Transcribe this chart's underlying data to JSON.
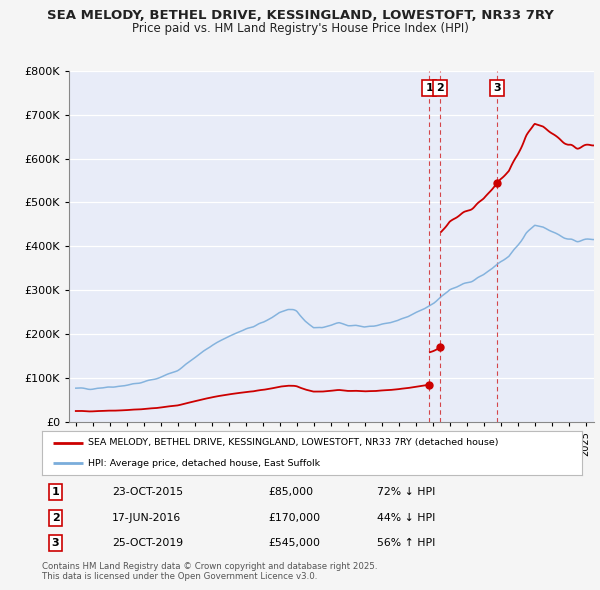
{
  "title_line1": "SEA MELODY, BETHEL DRIVE, KESSINGLAND, LOWESTOFT, NR33 7RY",
  "title_line2": "Price paid vs. HM Land Registry's House Price Index (HPI)",
  "background_color": "#f5f5f5",
  "plot_bg_color": "#e8ecf8",
  "ylim": [
    0,
    800000
  ],
  "yticks": [
    0,
    100000,
    200000,
    300000,
    400000,
    500000,
    600000,
    700000,
    800000
  ],
  "xlim_start": 1994.6,
  "xlim_end": 2025.5,
  "transactions": [
    {
      "num": 1,
      "date": "23-OCT-2015",
      "price": 85000,
      "year": 2015.81,
      "pct": "72%",
      "dir": "↓"
    },
    {
      "num": 2,
      "date": "17-JUN-2016",
      "price": 170000,
      "year": 2016.46,
      "pct": "44%",
      "dir": "↓"
    },
    {
      "num": 3,
      "date": "25-OCT-2019",
      "price": 545000,
      "year": 2019.81,
      "pct": "56%",
      "dir": "↑"
    }
  ],
  "legend_label_red": "SEA MELODY, BETHEL DRIVE, KESSINGLAND, LOWESTOFT, NR33 7RY (detached house)",
  "legend_label_blue": "HPI: Average price, detached house, East Suffolk",
  "footnote_line1": "Contains HM Land Registry data © Crown copyright and database right 2025.",
  "footnote_line2": "This data is licensed under the Open Government Licence v3.0.",
  "red_color": "#cc0000",
  "blue_color": "#7aaddb",
  "dashed_color": "#cc0000",
  "grid_color": "#ffffff",
  "t1": 2015.81,
  "t2": 2016.46,
  "t3": 2019.81,
  "p1": 85000,
  "p2": 170000,
  "p3": 545000,
  "hpi_1995": 75000,
  "hpi_2000": 105000,
  "hpi_2002": 140000,
  "hpi_2004": 185000,
  "hpi_2006": 225000,
  "hpi_2007": 250000,
  "hpi_2009": 215000,
  "hpi_2012": 215000,
  "hpi_2014": 235000,
  "hpi_2016": 305000,
  "hpi_2018": 340000,
  "hpi_2019_8": 360000,
  "hpi_2021": 420000,
  "hpi_2022": 445000,
  "hpi_2023": 430000,
  "hpi_2025": 415000
}
